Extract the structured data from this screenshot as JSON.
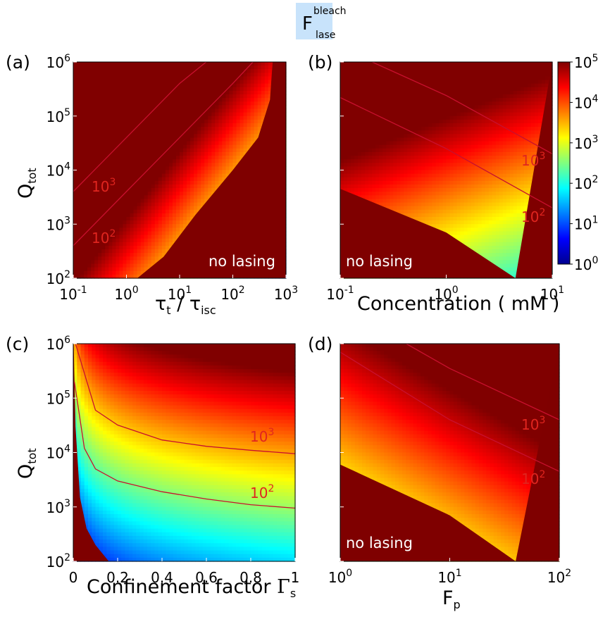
{
  "figure_title": {
    "main": "F",
    "sup": "bleach",
    "sub": "lase",
    "bg": "#c8e3fb"
  },
  "colors": {
    "no_lasing": "#7f0000",
    "contour": "#c8102e",
    "anno": "#e0251f"
  },
  "colorbar": {
    "colormap": "jet",
    "scale": "log",
    "range": [
      1,
      100000
    ],
    "ticks": [
      {
        "b": "10",
        "e": "0"
      },
      {
        "b": "10",
        "e": "1"
      },
      {
        "b": "10",
        "e": "2"
      },
      {
        "b": "10",
        "e": "3"
      },
      {
        "b": "10",
        "e": "4"
      },
      {
        "b": "10",
        "e": "5"
      }
    ]
  },
  "chart_data": [
    {
      "panel": "(a)",
      "type": "heatmap",
      "xlabel": {
        "m": "τ",
        "ms": "t",
        "d": "τ",
        "ds": "isc",
        "sep": " / "
      },
      "ylabel": {
        "m": "Q",
        "s": "tot"
      },
      "xscale": "log",
      "xlim": [
        0.1,
        1000
      ],
      "yscale": "log",
      "ylim": [
        100,
        1000000
      ],
      "xticks": [
        {
          "b": "10",
          "e": "-1"
        },
        {
          "b": "10",
          "e": "0"
        },
        {
          "b": "10",
          "e": "1"
        },
        {
          "b": "10",
          "e": "2"
        },
        {
          "b": "10",
          "e": "3"
        }
      ],
      "yticks": [
        {
          "b": "10",
          "e": "2"
        },
        {
          "b": "10",
          "e": "3"
        },
        {
          "b": "10",
          "e": "4"
        },
        {
          "b": "10",
          "e": "5"
        },
        {
          "b": "10",
          "e": "6"
        }
      ],
      "contour_levels": [
        {
          "b": "10",
          "e": "3"
        },
        {
          "b": "10",
          "e": "2"
        }
      ],
      "contours": [
        {
          "level": 1000,
          "points": [
            [
              0.1,
              4000
            ],
            [
              1,
              40000
            ],
            [
              10,
              400000
            ],
            [
              31.6,
              1000000
            ]
          ]
        },
        {
          "level": 100,
          "points": [
            [
              0.1,
              400
            ],
            [
              1,
              4000
            ],
            [
              10,
              40000
            ],
            [
              100,
              400000
            ],
            [
              240,
              1000000
            ]
          ]
        }
      ],
      "no_lasing_region": [
        [
          1.6,
          100
        ],
        [
          5,
          250
        ],
        [
          20,
          1500
        ],
        [
          100,
          10000
        ],
        [
          300,
          40000
        ],
        [
          500,
          200000
        ],
        [
          560,
          1000000
        ]
      ],
      "annotation": "no lasing"
    },
    {
      "panel": "(b)",
      "type": "heatmap",
      "xlabel": {
        "t": "Concentration ( mM )"
      },
      "xscale": "log",
      "xlim": [
        0.1,
        10
      ],
      "yscale": "log",
      "ylim": [
        100,
        1000000
      ],
      "xticks": [
        {
          "b": "10",
          "e": "-1"
        },
        {
          "b": "10",
          "e": "0"
        },
        {
          "b": "10",
          "e": "1"
        }
      ],
      "contour_levels": [
        {
          "b": "10",
          "e": "3"
        },
        {
          "b": "10",
          "e": "2"
        }
      ],
      "contours": [
        {
          "level": 1000,
          "points": [
            [
              0.2,
              1000000
            ],
            [
              1,
              240000
            ],
            [
              10,
              20000
            ]
          ]
        },
        {
          "level": 100,
          "points": [
            [
              0.1,
              220000
            ],
            [
              1,
              25000
            ],
            [
              10,
              2000
            ]
          ]
        }
      ],
      "no_lasing_region": [
        [
          0.1,
          4500
        ],
        [
          1,
          700
        ],
        [
          4.5,
          100
        ]
      ],
      "annotation": "no lasing"
    },
    {
      "panel": "(c)",
      "type": "heatmap",
      "xlabel": {
        "t": "Confinement factor ",
        "g": "Γ",
        "s": "s"
      },
      "ylabel": {
        "m": "Q",
        "s": "tot"
      },
      "xscale": "linear",
      "xlim": [
        0,
        1
      ],
      "yscale": "log",
      "ylim": [
        100,
        1000000
      ],
      "xticks": [
        {
          "b": "0"
        },
        {
          "b": "0.2"
        },
        {
          "b": "0.4"
        },
        {
          "b": "0.6"
        },
        {
          "b": "0.8"
        },
        {
          "b": "1"
        }
      ],
      "yticks": [
        {
          "b": "10",
          "e": "2"
        },
        {
          "b": "10",
          "e": "3"
        },
        {
          "b": "10",
          "e": "4"
        },
        {
          "b": "10",
          "e": "5"
        },
        {
          "b": "10",
          "e": "6"
        }
      ],
      "contour_levels": [
        {
          "b": "10",
          "e": "3"
        },
        {
          "b": "10",
          "e": "2"
        }
      ],
      "contours": [
        {
          "level": 1000,
          "points": [
            [
              0.01,
              1000000
            ],
            [
              0.1,
              60000
            ],
            [
              0.2,
              32000
            ],
            [
              0.4,
              17000
            ],
            [
              0.6,
              13000
            ],
            [
              0.8,
              11000
            ],
            [
              1,
              9500
            ]
          ]
        },
        {
          "level": 100,
          "points": [
            [
              0.005,
              200000
            ],
            [
              0.05,
              12000
            ],
            [
              0.1,
              5000
            ],
            [
              0.2,
              3000
            ],
            [
              0.4,
              1900
            ],
            [
              0.6,
              1400
            ],
            [
              0.8,
              1100
            ],
            [
              1,
              950
            ]
          ]
        }
      ],
      "no_lasing_region": [
        [
          0.002,
          1000000
        ],
        [
          0.01,
          30000
        ],
        [
          0.03,
          1500
        ],
        [
          0.06,
          400
        ],
        [
          0.1,
          200
        ],
        [
          0.16,
          100
        ]
      ],
      "annotation": ""
    },
    {
      "panel": "(d)",
      "type": "heatmap",
      "xlabel": {
        "m": "F",
        "s": "p"
      },
      "xscale": "log",
      "xlim": [
        1,
        100
      ],
      "yscale": "log",
      "ylim": [
        100,
        1000000
      ],
      "xticks": [
        {
          "b": "10",
          "e": "0"
        },
        {
          "b": "10",
          "e": "1"
        },
        {
          "b": "10",
          "e": "2"
        }
      ],
      "contour_levels": [
        {
          "b": "10",
          "e": "3"
        },
        {
          "b": "10",
          "e": "2"
        }
      ],
      "contours": [
        {
          "level": 1000,
          "points": [
            [
              4,
              1000000
            ],
            [
              10,
              350000
            ],
            [
              100,
              40000
            ]
          ]
        },
        {
          "level": 100,
          "points": [
            [
              1,
              700000
            ],
            [
              10,
              40000
            ],
            [
              100,
              4500
            ]
          ]
        }
      ],
      "no_lasing_region": [
        [
          1,
          6000
        ],
        [
          10,
          700
        ],
        [
          40,
          100
        ]
      ],
      "annotation": "no lasing"
    }
  ]
}
